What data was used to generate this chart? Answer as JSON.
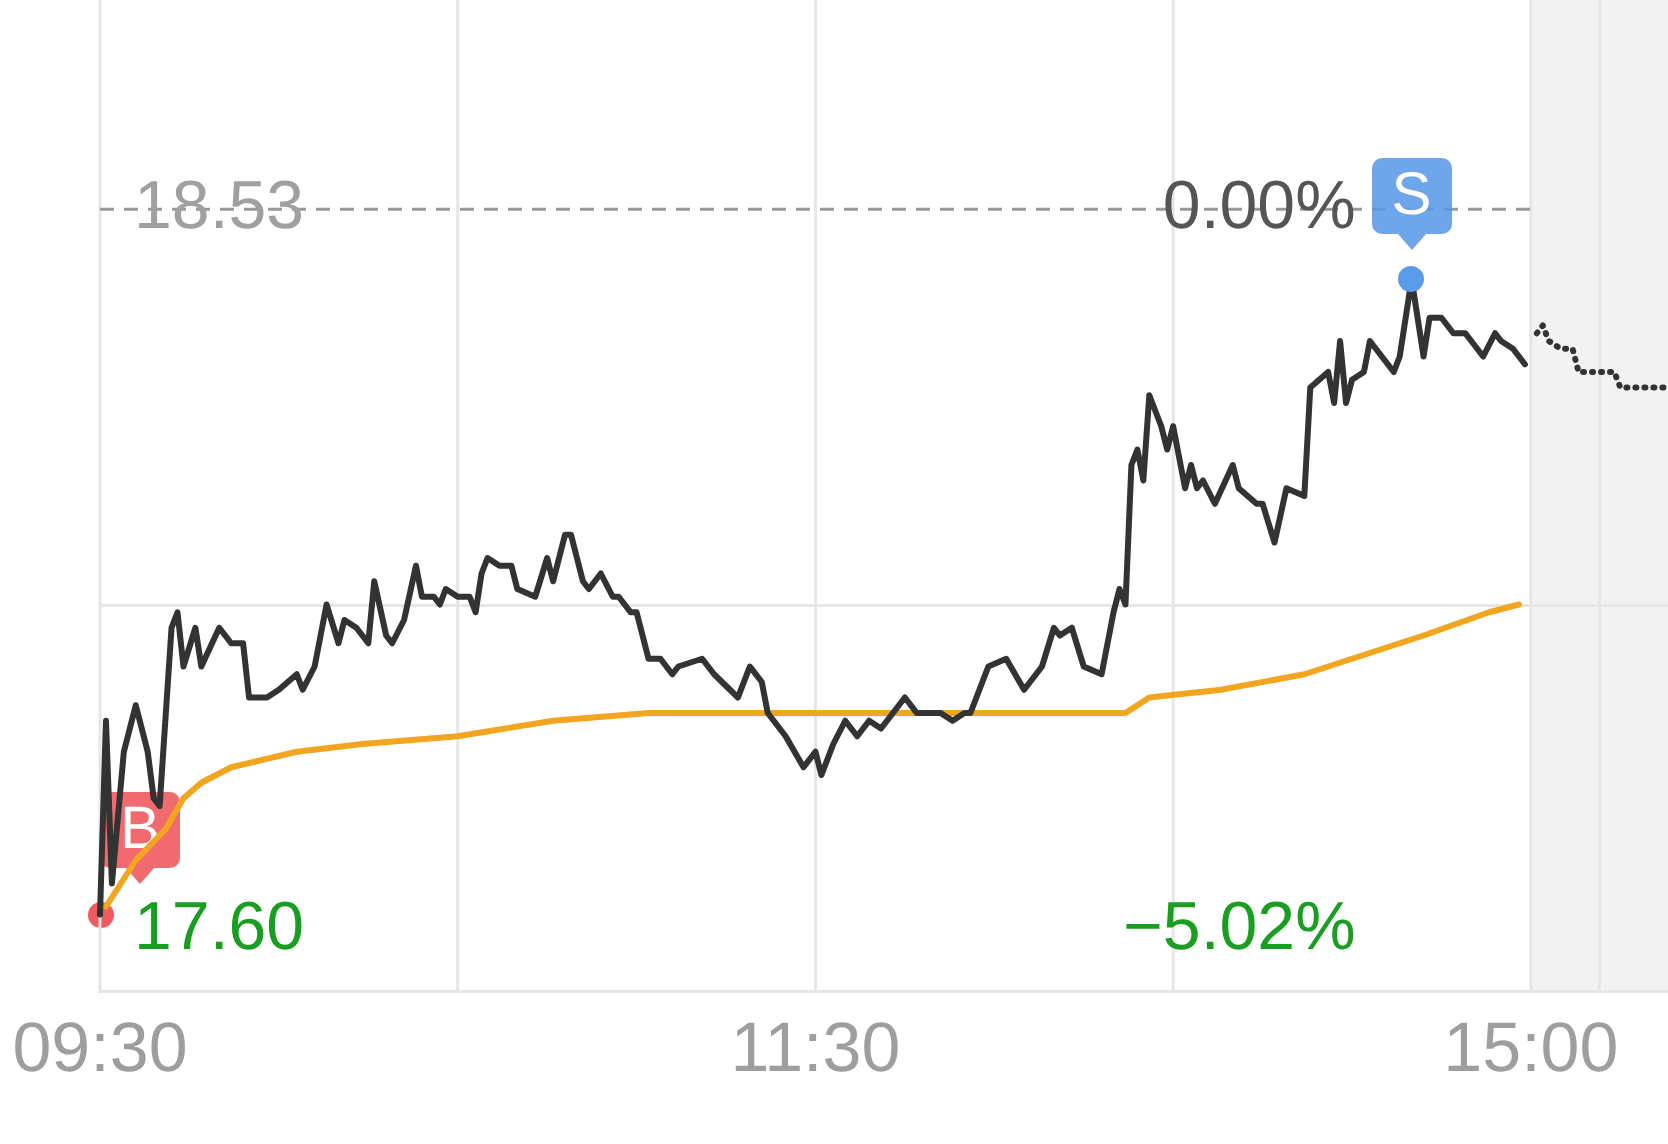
{
  "chart_data": {
    "type": "line",
    "categories": [
      "09:30",
      null,
      null,
      null,
      null,
      null,
      null,
      null,
      null,
      null,
      null,
      null,
      null,
      null,
      null,
      null,
      null,
      null,
      null,
      null,
      null,
      null,
      null,
      null,
      null,
      null,
      null,
      null,
      null,
      null,
      null,
      null,
      null,
      null,
      null,
      null,
      null,
      null,
      null,
      null,
      null,
      null,
      null,
      null,
      null,
      null,
      null,
      null,
      null,
      null,
      null,
      null,
      null,
      null,
      null,
      null,
      null,
      null,
      null,
      null,
      null,
      null,
      null,
      null,
      null,
      null,
      null,
      null,
      null,
      null,
      null,
      null,
      null,
      null,
      null,
      null,
      null,
      null,
      null,
      null,
      null,
      null,
      null,
      null,
      null,
      null,
      null,
      null,
      null,
      null,
      null,
      null,
      null,
      null,
      null,
      null,
      null,
      null,
      null,
      null,
      null,
      null,
      null,
      null,
      null,
      null,
      null,
      null,
      null,
      null,
      null,
      null,
      null,
      null,
      null,
      null,
      null,
      null,
      null,
      null,
      "11:30",
      null,
      null,
      null,
      null,
      null,
      null,
      null,
      null,
      null,
      null,
      null,
      null,
      null,
      null,
      null,
      null,
      null,
      null,
      null,
      null,
      null,
      null,
      null,
      null,
      null,
      null,
      null,
      null,
      null,
      null,
      null,
      null,
      null,
      null,
      null,
      null,
      null,
      null,
      null,
      null,
      null,
      null,
      null,
      null,
      null,
      null,
      null,
      null,
      null,
      null,
      null,
      null,
      null,
      null,
      null,
      null,
      null,
      null,
      null,
      null,
      null,
      null,
      null,
      null,
      null,
      null,
      null,
      null,
      null,
      null,
      null,
      null,
      null,
      null,
      null,
      null,
      null,
      null,
      null,
      null,
      null,
      null,
      null,
      null,
      null,
      null,
      null,
      null,
      null,
      null,
      null,
      null,
      null,
      null,
      null,
      null,
      null,
      null,
      null,
      null,
      null,
      null,
      null,
      null,
      null,
      null,
      null,
      null,
      null,
      null,
      null,
      null,
      null,
      null,
      null,
      null,
      null,
      null,
      null,
      "15:00",
      null,
      null,
      null,
      null,
      null,
      null,
      null,
      null,
      null,
      null,
      null,
      null,
      null,
      null,
      null,
      null,
      null,
      null,
      null,
      null,
      null,
      null,
      null
    ],
    "ylim": [
      17.52,
      18.8
    ],
    "yticks": [
      {
        "value": 17.6,
        "label": "17.60"
      },
      {
        "value": 18.02,
        "label": null
      },
      {
        "value": 18.53,
        "label": "18.53"
      }
    ],
    "y2lim": [
      -5.45,
      1.46
    ],
    "y2ticks": [
      {
        "value": -5.02,
        "label": "−5.02%"
      },
      {
        "value": 0,
        "label": "0.00%"
      }
    ],
    "grid": true,
    "ref_lines": [
      {
        "axis": "y",
        "value": 18.53,
        "color": "#999999",
        "line_style": "dashed"
      }
    ],
    "annotations": [
      {
        "text": "B",
        "x": "09:30",
        "y": 17.62
      },
      {
        "text": "S",
        "y": 18.44
      }
    ],
    "series": [
      {
        "color": "#333333",
        "values": [
          17.62,
          17.87,
          17.66,
          null,
          17.83,
          null,
          17.89,
          null,
          17.83,
          17.77,
          17.76,
          null,
          17.99,
          18.01,
          17.94,
          null,
          17.99,
          17.94,
          null,
          null,
          17.99,
          null,
          17.97,
          null,
          17.97,
          17.9,
          null,
          null,
          17.9,
          null,
          17.91,
          null,
          null,
          17.93,
          17.91,
          null,
          17.94,
          null,
          18.02,
          null,
          17.97,
          18.0,
          null,
          17.99,
          null,
          17.97,
          18.05,
          null,
          17.98,
          17.97,
          null,
          18.0,
          null,
          18.07,
          18.03,
          null,
          18.03,
          18.02,
          18.04,
          null,
          18.03,
          null,
          18.03,
          18.01,
          18.06,
          18.08,
          null,
          18.07,
          null,
          18.07,
          18.04,
          null,
          null,
          18.03,
          null,
          18.08,
          18.05,
          null,
          18.11,
          18.11,
          null,
          18.05,
          18.04,
          null,
          18.06,
          null,
          18.03,
          18.03,
          null,
          18.01,
          18.01,
          null,
          17.95,
          null,
          17.95,
          null,
          17.93,
          17.94,
          null,
          null,
          null,
          17.95,
          null,
          17.93,
          null,
          null,
          null,
          17.9,
          null,
          17.94,
          null,
          17.92,
          17.88,
          null,
          17.86,
          17.85,
          null,
          null,
          17.81,
          null,
          17.83,
          17.8,
          null,
          17.84,
          null,
          17.87,
          null,
          17.85,
          null,
          17.87,
          null,
          17.86,
          null,
          17.88,
          null,
          17.9,
          null,
          17.88,
          null,
          null,
          null,
          17.88,
          null,
          17.87,
          null,
          17.88,
          17.88,
          null,
          null,
          17.94,
          null,
          null,
          17.95,
          null,
          null,
          17.91,
          null,
          null,
          17.94,
          null,
          17.99,
          17.98,
          null,
          17.99,
          null,
          17.94,
          null,
          null,
          17.93,
          null,
          18.01,
          18.04,
          18.02,
          18.2,
          18.22,
          18.18,
          18.29,
          null,
          18.25,
          18.22,
          18.25,
          null,
          18.17,
          18.2,
          18.17,
          18.18,
          null,
          18.15,
          null,
          null,
          18.2,
          18.17,
          null,
          null,
          18.15,
          18.15,
          null,
          18.1,
          null,
          18.17,
          null,
          null,
          18.16,
          18.3,
          null,
          null,
          18.32,
          18.28,
          18.36,
          18.28,
          18.31,
          null,
          18.32,
          18.36,
          null,
          18.34,
          null,
          18.32,
          18.34,
          18.39,
          18.44,
          null,
          18.34,
          18.39,
          null,
          18.39,
          null,
          18.37,
          null,
          18.37,
          null,
          18.35,
          18.34,
          null,
          18.37,
          18.36,
          null,
          18.35,
          null,
          18.33,
          null,
          null,
          null,
          null,
          null,
          null,
          null,
          null,
          null,
          null,
          null,
          null,
          null,
          null,
          null,
          null,
          null,
          null,
          null,
          null,
          null,
          null,
          null,
          null
        ]
      },
      {
        "color": "#f2a51f",
        "values": [
          null,
          17.63,
          null,
          null,
          null,
          null,
          17.69,
          null,
          null,
          null,
          null,
          17.73,
          null,
          null,
          17.77,
          null,
          null,
          17.79,
          null,
          null,
          null,
          null,
          17.81,
          null,
          null,
          null,
          null,
          null,
          null,
          null,
          null,
          null,
          null,
          17.83,
          null,
          null,
          null,
          null,
          null,
          null,
          null,
          null,
          null,
          null,
          17.84,
          null,
          null,
          null,
          null,
          null,
          null,
          null,
          null,
          null,
          null,
          null,
          null,
          null,
          null,
          null,
          17.85,
          null,
          null,
          null,
          null,
          null,
          null,
          null,
          null,
          null,
          null,
          null,
          null,
          null,
          null,
          null,
          17.87,
          null,
          null,
          null,
          null,
          null,
          null,
          null,
          null,
          null,
          null,
          null,
          null,
          null,
          null,
          null,
          17.88,
          null,
          null,
          null,
          null,
          null,
          null,
          null,
          null,
          null,
          null,
          17.88,
          null,
          null,
          null,
          null,
          null,
          null,
          null,
          null,
          null,
          null,
          null,
          null,
          null,
          null,
          null,
          null,
          null,
          null,
          null,
          null,
          null,
          null,
          null,
          null,
          null,
          17.88,
          null,
          null,
          null,
          null,
          null,
          null,
          null,
          null,
          null,
          null,
          null,
          null,
          null,
          null,
          null,
          null,
          null,
          null,
          null,
          null,
          null,
          null,
          null,
          null,
          null,
          null,
          null,
          null,
          null,
          null,
          null,
          null,
          17.88,
          null,
          null,
          null,
          null,
          null,
          null,
          null,
          null,
          null,
          17.88,
          null,
          null,
          null,
          17.9,
          null,
          null,
          null,
          null,
          null,
          null,
          null,
          null,
          null,
          null,
          null,
          17.91,
          null,
          null,
          null,
          null,
          null,
          null,
          null,
          null,
          null,
          null,
          null,
          null,
          null,
          17.93,
          null,
          null,
          null,
          17.94,
          null,
          null,
          null,
          null,
          null,
          null,
          null,
          null,
          null,
          null,
          null,
          17.97,
          null,
          null,
          null,
          17.98,
          null,
          null,
          null,
          null,
          null,
          null,
          null,
          null,
          null,
          null,
          18.01,
          null,
          null,
          null,
          null,
          18.02,
          null,
          null,
          null,
          null,
          null,
          null,
          null,
          null,
          null,
          null,
          null,
          null,
          null,
          null,
          null,
          null,
          null,
          null,
          null,
          null,
          null,
          null,
          null,
          null,
          null
        ]
      },
      {
        "color": "#333333",
        "line_style": "dotted",
        "values": [
          null,
          null,
          null,
          null,
          null,
          null,
          null,
          null,
          null,
          null,
          null,
          null,
          null,
          null,
          null,
          null,
          null,
          null,
          null,
          null,
          null,
          null,
          null,
          null,
          null,
          null,
          null,
          null,
          null,
          null,
          null,
          null,
          null,
          null,
          null,
          null,
          null,
          null,
          null,
          null,
          null,
          null,
          null,
          null,
          null,
          null,
          null,
          null,
          null,
          null,
          null,
          null,
          null,
          null,
          null,
          null,
          null,
          null,
          null,
          null,
          null,
          null,
          null,
          null,
          null,
          null,
          null,
          null,
          null,
          null,
          null,
          null,
          null,
          null,
          null,
          null,
          null,
          null,
          null,
          null,
          null,
          null,
          null,
          null,
          null,
          null,
          null,
          null,
          null,
          null,
          null,
          null,
          null,
          null,
          null,
          null,
          null,
          null,
          null,
          null,
          null,
          null,
          null,
          null,
          null,
          null,
          null,
          null,
          null,
          null,
          null,
          null,
          null,
          null,
          null,
          null,
          null,
          null,
          null,
          null,
          null,
          null,
          null,
          null,
          null,
          null,
          null,
          null,
          null,
          null,
          null,
          null,
          null,
          null,
          null,
          null,
          null,
          null,
          null,
          null,
          null,
          null,
          null,
          null,
          null,
          null,
          null,
          null,
          null,
          null,
          null,
          null,
          null,
          null,
          null,
          null,
          null,
          null,
          null,
          null,
          null,
          null,
          null,
          null,
          null,
          null,
          null,
          null,
          null,
          null,
          null,
          null,
          null,
          null,
          null,
          null,
          null,
          null,
          null,
          null,
          null,
          null,
          null,
          null,
          null,
          null,
          null,
          null,
          null,
          null,
          null,
          null,
          null,
          null,
          null,
          null,
          null,
          null,
          null,
          null,
          null,
          null,
          null,
          null,
          null,
          null,
          null,
          null,
          null,
          null,
          null,
          null,
          null,
          null,
          null,
          null,
          null,
          null,
          null,
          null,
          null,
          null,
          null,
          null,
          null,
          null,
          null,
          null,
          null,
          null,
          null,
          null,
          null,
          null,
          null,
          null,
          null,
          null,
          null,
          null,
          null,
          18.37,
          18.38,
          18.36,
          null,
          18.35,
          null,
          18.35,
          18.32,
          null,
          null,
          null,
          null,
          null,
          18.32,
          18.3,
          null,
          null,
          null,
          null,
          null,
          null,
          null,
          18.3
        ]
      }
    ]
  }
}
